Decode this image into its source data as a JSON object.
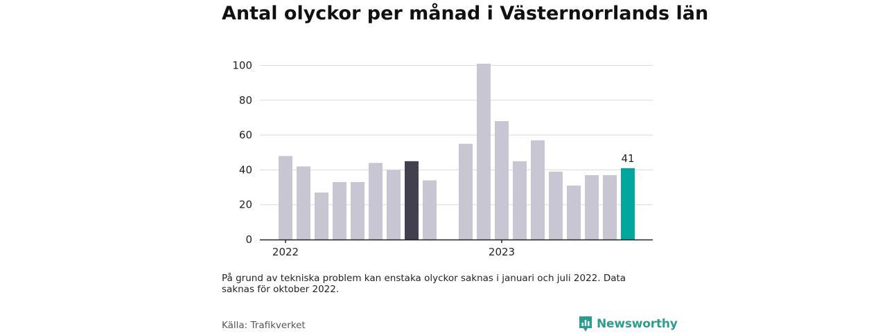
{
  "title": "Antal olyckor per månad i Västernorrlands län",
  "footnote": "På grund av tekniska problem kan enstaka olyckor saknas i januari och juli 2022. Data saknas för oktober 2022.",
  "source": "Källa: Trafikverket",
  "brand": {
    "name": "Newsworthy",
    "icon": "newsworthy-logo-icon",
    "color": "#2a9d8f"
  },
  "chart_data": {
    "type": "bar",
    "title": "Antal olyckor per månad i Västernorrlands län",
    "xlabel": "",
    "ylabel": "",
    "ylim": [
      0,
      100
    ],
    "yticks": [
      0,
      20,
      40,
      60,
      80,
      100
    ],
    "year_labels": [
      {
        "label": "2022",
        "month": "2022-01"
      },
      {
        "label": "2023",
        "month": "2023-01"
      }
    ],
    "grid": true,
    "colors": {
      "default": "#c8c6d3",
      "highlight_2022": "#423f4f",
      "latest": "#00a79d"
    },
    "bars": [
      {
        "month": "2022-01",
        "value": 48,
        "color": "default"
      },
      {
        "month": "2022-02",
        "value": 42,
        "color": "default"
      },
      {
        "month": "2022-03",
        "value": 27,
        "color": "default"
      },
      {
        "month": "2022-04",
        "value": 33,
        "color": "default"
      },
      {
        "month": "2022-05",
        "value": 33,
        "color": "default"
      },
      {
        "month": "2022-06",
        "value": 44,
        "color": "default"
      },
      {
        "month": "2022-07",
        "value": 40,
        "color": "default"
      },
      {
        "month": "2022-08",
        "value": 45,
        "color": "highlight_2022"
      },
      {
        "month": "2022-09",
        "value": 34,
        "color": "default"
      },
      {
        "month": "2022-10",
        "value": null,
        "color": "default"
      },
      {
        "month": "2022-11",
        "value": 55,
        "color": "default"
      },
      {
        "month": "2022-12",
        "value": 101,
        "color": "default"
      },
      {
        "month": "2023-01",
        "value": 68,
        "color": "default"
      },
      {
        "month": "2023-02",
        "value": 45,
        "color": "default"
      },
      {
        "month": "2023-03",
        "value": 57,
        "color": "default"
      },
      {
        "month": "2023-04",
        "value": 39,
        "color": "default"
      },
      {
        "month": "2023-05",
        "value": 31,
        "color": "default"
      },
      {
        "month": "2023-06",
        "value": 37,
        "color": "default"
      },
      {
        "month": "2023-07",
        "value": 37,
        "color": "default"
      },
      {
        "month": "2023-08",
        "value": 41,
        "color": "latest",
        "label": "41"
      }
    ]
  }
}
